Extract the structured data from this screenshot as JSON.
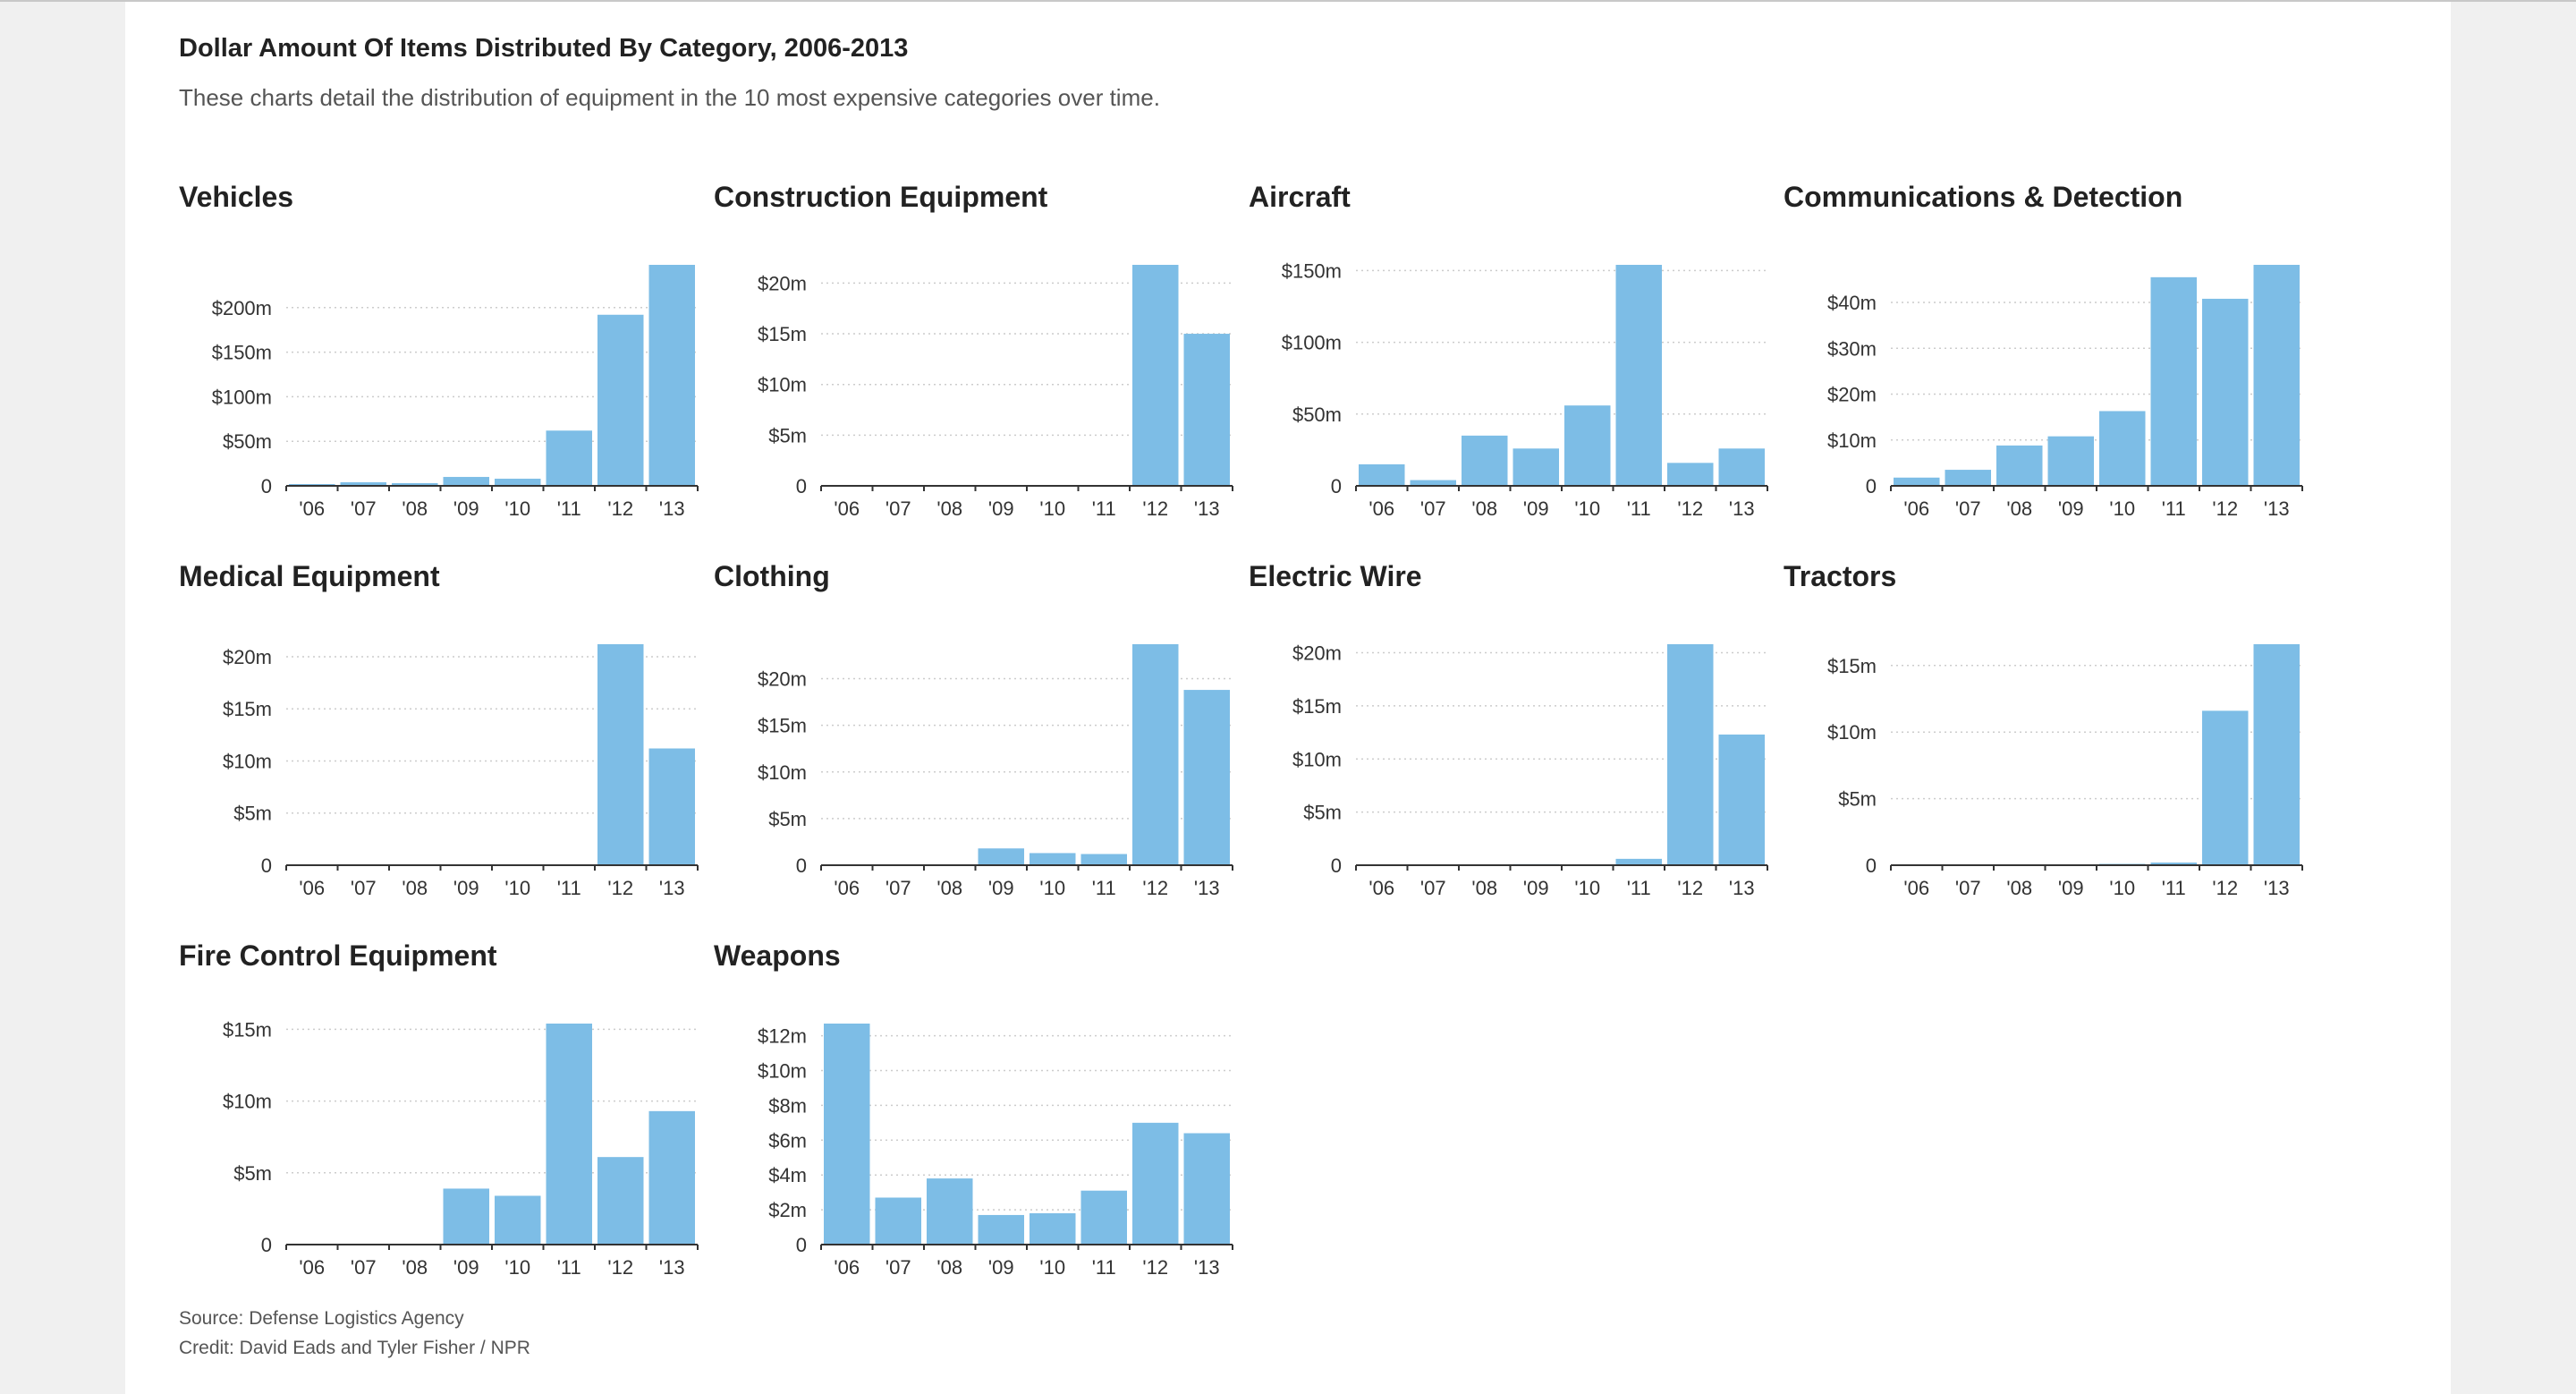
{
  "page": {
    "title": "Dollar Amount Of Items Distributed By Category, 2006-2013",
    "subtitle": "These charts detail the distribution of equipment in the 10 most expensive categories over time.",
    "source": "Source: Defense Logistics Agency",
    "credit": "Credit: David Eads and Tyler Fisher / NPR"
  },
  "colors": {
    "bar": "#7dbde6",
    "axis": "#333333",
    "grid": "#cccccc",
    "text": "#333333"
  },
  "chart_data": [
    {
      "type": "bar",
      "title": "Vehicles",
      "categories": [
        "'06",
        "'07",
        "'08",
        "'09",
        "'10",
        "'11",
        "'12",
        "'13"
      ],
      "values": [
        2,
        4,
        3,
        10,
        8,
        62,
        192,
        248
      ],
      "unit": "million USD",
      "ylim": [
        0,
        248
      ],
      "yticks": [
        0,
        50,
        100,
        150,
        200
      ],
      "ytick_labels": [
        "0",
        "$50m",
        "$100m",
        "$150m",
        "$200m"
      ]
    },
    {
      "type": "bar",
      "title": "Construction Equipment",
      "categories": [
        "'06",
        "'07",
        "'08",
        "'09",
        "'10",
        "'11",
        "'12",
        "'13"
      ],
      "values": [
        0,
        0,
        0,
        0,
        0,
        0,
        21.8,
        15
      ],
      "unit": "million USD",
      "ylim": [
        0,
        21.8
      ],
      "yticks": [
        0,
        5,
        10,
        15,
        20
      ],
      "ytick_labels": [
        "0",
        "$5m",
        "$10m",
        "$15m",
        "$20m"
      ]
    },
    {
      "type": "bar",
      "title": "Aircraft",
      "categories": [
        "'06",
        "'07",
        "'08",
        "'09",
        "'10",
        "'11",
        "'12",
        "'13"
      ],
      "values": [
        15,
        4,
        35,
        26,
        56,
        154,
        16,
        26
      ],
      "unit": "million USD",
      "ylim": [
        0,
        154
      ],
      "yticks": [
        0,
        50,
        100,
        150
      ],
      "ytick_labels": [
        "0",
        "$50m",
        "$100m",
        "$150m"
      ]
    },
    {
      "type": "bar",
      "title": "Communications & Detection",
      "categories": [
        "'06",
        "'07",
        "'08",
        "'09",
        "'10",
        "'11",
        "'12",
        "'13"
      ],
      "values": [
        1.8,
        3.5,
        8.8,
        10.8,
        16.3,
        45.5,
        40.8,
        48.2
      ],
      "unit": "million USD",
      "ylim": [
        0,
        48.2
      ],
      "yticks": [
        0,
        10,
        20,
        30,
        40
      ],
      "ytick_labels": [
        "0",
        "$10m",
        "$20m",
        "$30m",
        "$40m"
      ]
    },
    {
      "type": "bar",
      "title": "Medical Equipment",
      "categories": [
        "'06",
        "'07",
        "'08",
        "'09",
        "'10",
        "'11",
        "'12",
        "'13"
      ],
      "values": [
        0,
        0,
        0,
        0.05,
        0,
        0,
        21.2,
        11.2
      ],
      "unit": "million USD",
      "ylim": [
        0,
        21.2
      ],
      "yticks": [
        0,
        5,
        10,
        15,
        20
      ],
      "ytick_labels": [
        "0",
        "$5m",
        "$10m",
        "$15m",
        "$20m"
      ]
    },
    {
      "type": "bar",
      "title": "Clothing",
      "categories": [
        "'06",
        "'07",
        "'08",
        "'09",
        "'10",
        "'11",
        "'12",
        "'13"
      ],
      "values": [
        0,
        0,
        0,
        1.8,
        1.3,
        1.2,
        23.7,
        18.8
      ],
      "unit": "million USD",
      "ylim": [
        0,
        23.7
      ],
      "yticks": [
        0,
        5,
        10,
        15,
        20
      ],
      "ytick_labels": [
        "0",
        "$5m",
        "$10m",
        "$15m",
        "$20m"
      ]
    },
    {
      "type": "bar",
      "title": "Electric Wire",
      "categories": [
        "'06",
        "'07",
        "'08",
        "'09",
        "'10",
        "'11",
        "'12",
        "'13"
      ],
      "values": [
        0,
        0,
        0,
        0.1,
        0,
        0.6,
        20.8,
        12.3
      ],
      "unit": "million USD",
      "ylim": [
        0,
        20.8
      ],
      "yticks": [
        0,
        5,
        10,
        15,
        20
      ],
      "ytick_labels": [
        "0",
        "$5m",
        "$10m",
        "$15m",
        "$20m"
      ]
    },
    {
      "type": "bar",
      "title": "Tractors",
      "categories": [
        "'06",
        "'07",
        "'08",
        "'09",
        "'10",
        "'11",
        "'12",
        "'13"
      ],
      "values": [
        0,
        0,
        0,
        0,
        0.1,
        0.2,
        11.6,
        16.6
      ],
      "unit": "million USD",
      "ylim": [
        0,
        16.6
      ],
      "yticks": [
        0,
        5,
        10,
        15
      ],
      "ytick_labels": [
        "0",
        "$5m",
        "$10m",
        "$15m"
      ]
    },
    {
      "type": "bar",
      "title": "Fire Control Equipment",
      "categories": [
        "'06",
        "'07",
        "'08",
        "'09",
        "'10",
        "'11",
        "'12",
        "'13"
      ],
      "values": [
        0,
        0,
        0,
        3.9,
        3.4,
        15.4,
        6.1,
        9.3
      ],
      "unit": "million USD",
      "ylim": [
        0,
        15.4
      ],
      "yticks": [
        0,
        5,
        10,
        15
      ],
      "ytick_labels": [
        "0",
        "$5m",
        "$10m",
        "$15m"
      ]
    },
    {
      "type": "bar",
      "title": "Weapons",
      "categories": [
        "'06",
        "'07",
        "'08",
        "'09",
        "'10",
        "'11",
        "'12",
        "'13"
      ],
      "values": [
        12.7,
        2.7,
        3.8,
        1.7,
        1.8,
        3.1,
        7.0,
        6.4
      ],
      "unit": "million USD",
      "ylim": [
        0,
        12.7
      ],
      "yticks": [
        0,
        2,
        4,
        6,
        8,
        10,
        12
      ],
      "ytick_labels": [
        "0",
        "$2m",
        "$4m",
        "$6m",
        "$8m",
        "$10m",
        "$12m"
      ]
    }
  ]
}
